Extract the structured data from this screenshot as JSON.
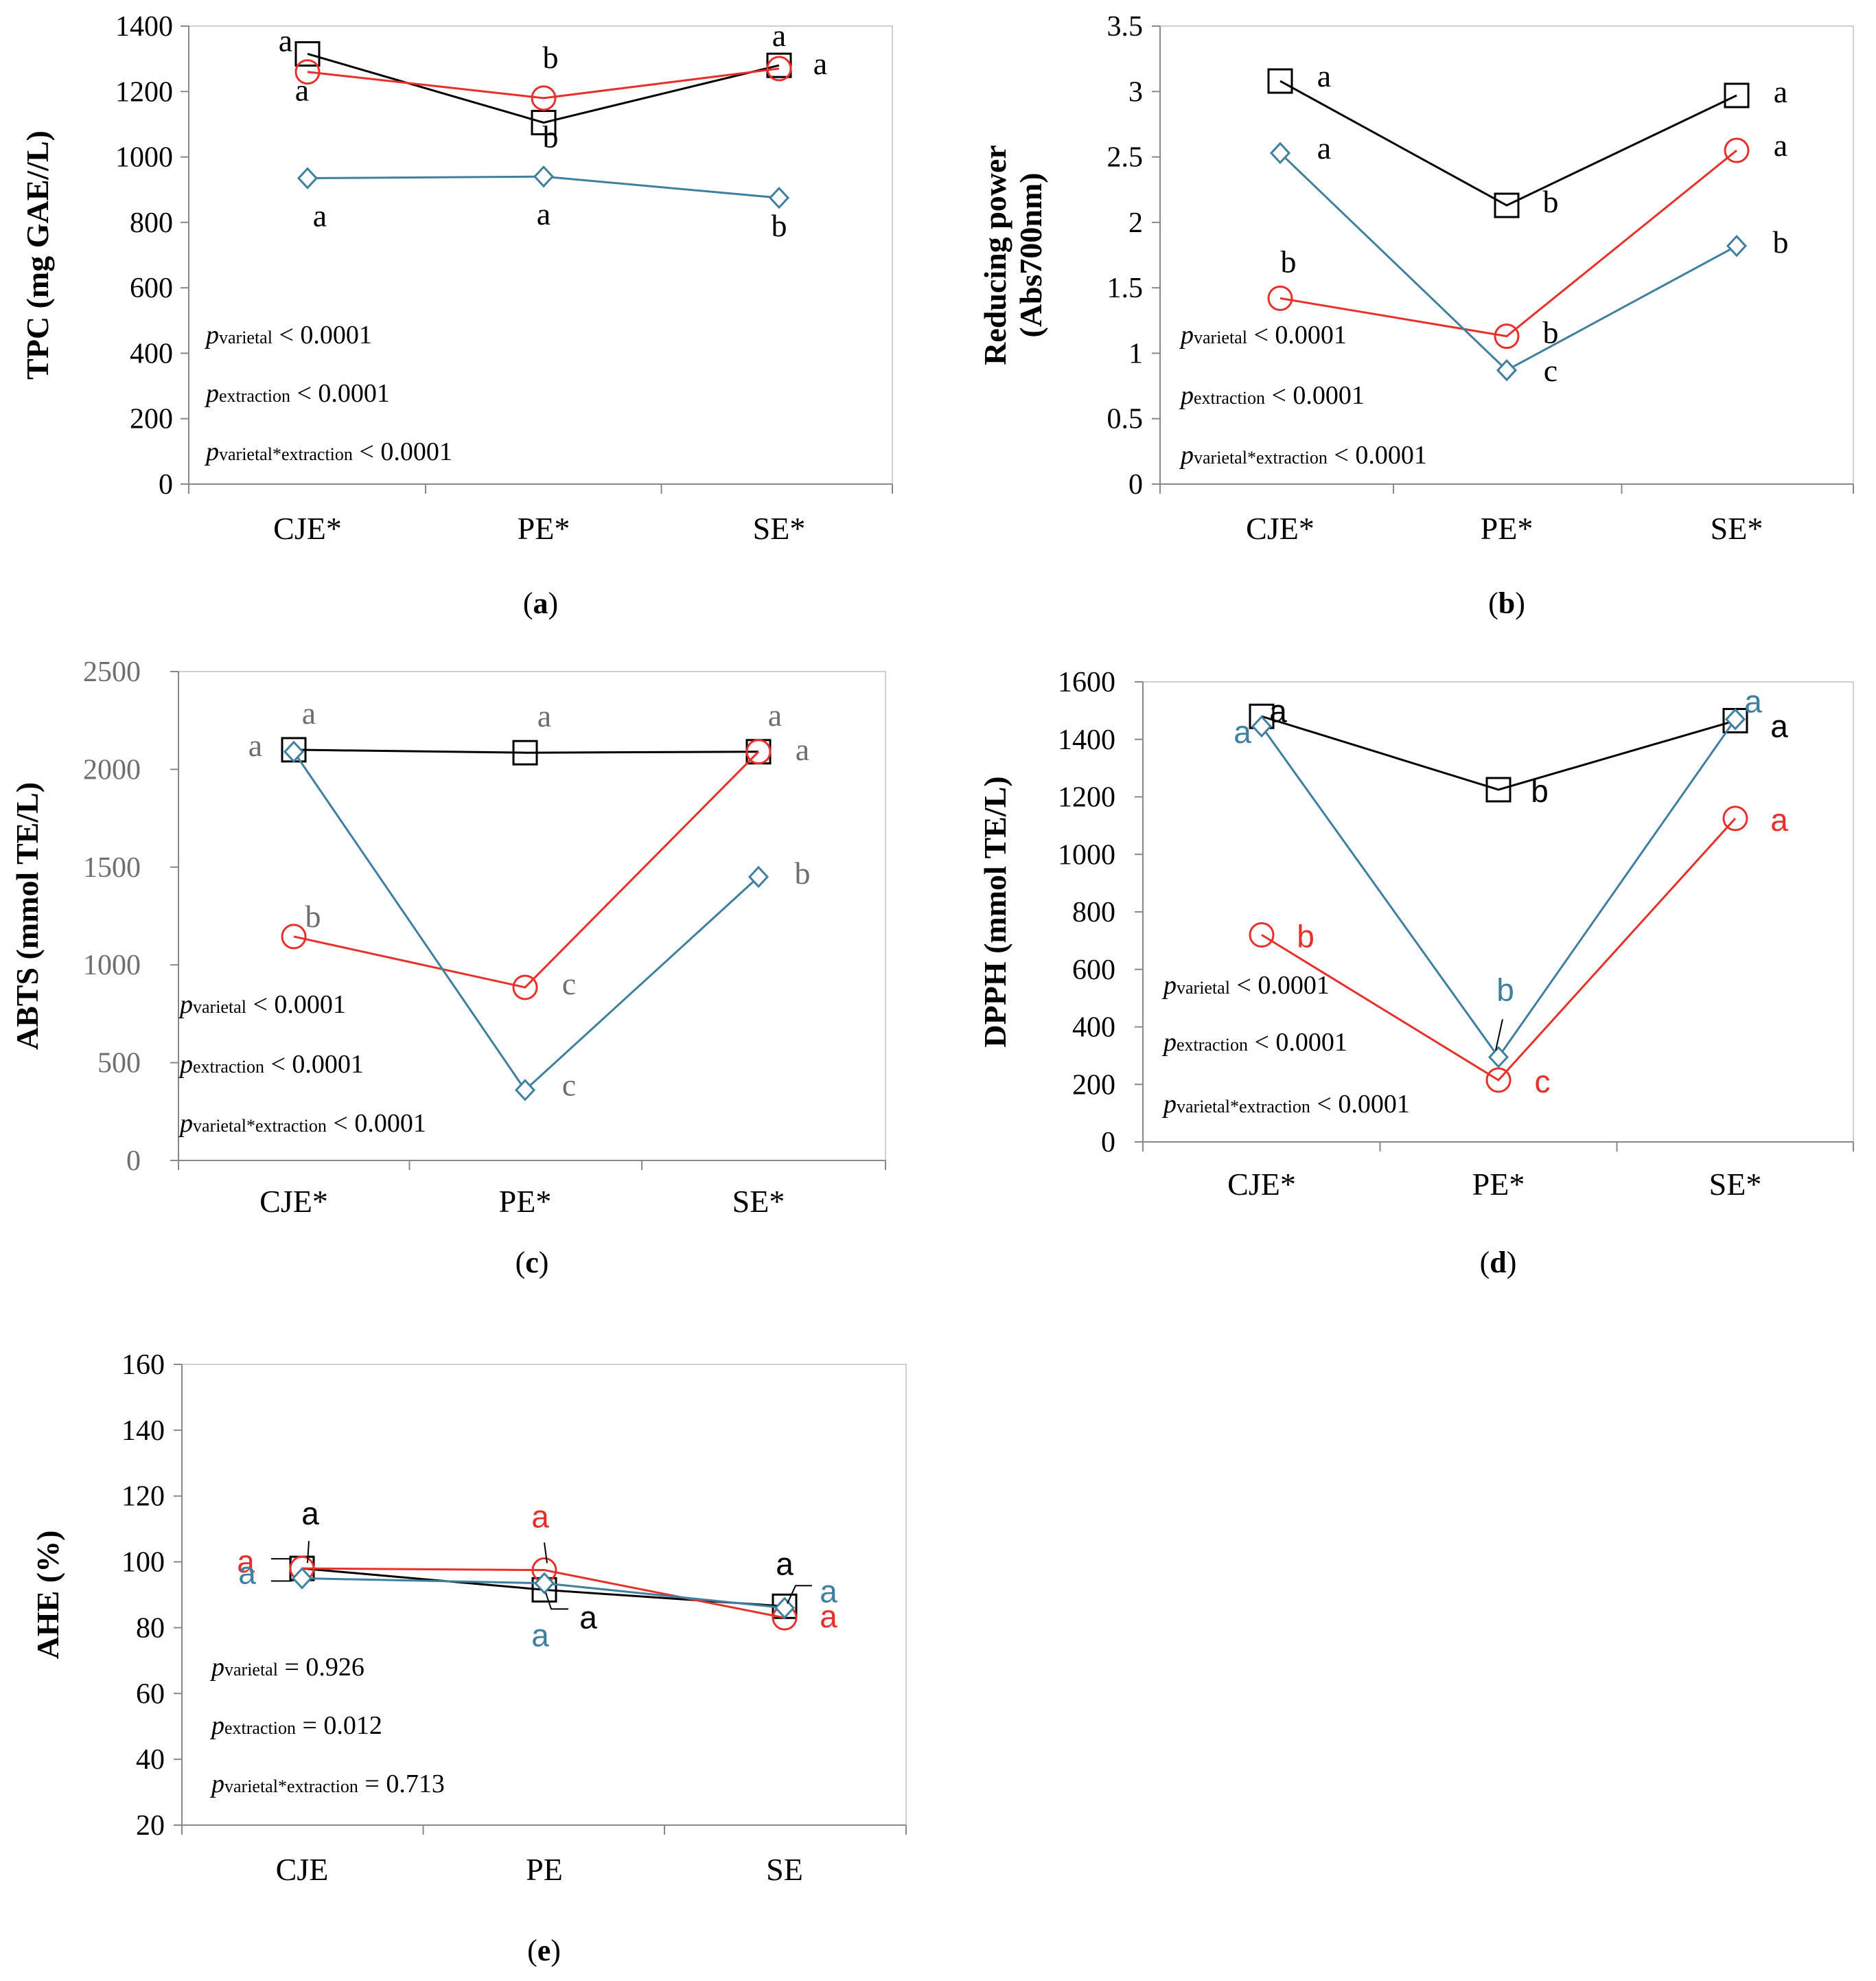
{
  "colors": {
    "black": "#000000",
    "red": "#e8302a",
    "blue": "#3f7f9f"
  },
  "series_legend": [
    {
      "key": "black",
      "marker": "square"
    },
    {
      "key": "red",
      "marker": "circle"
    },
    {
      "key": "blue",
      "marker": "diamond"
    }
  ],
  "chart_data": [
    {
      "panel": "(a)",
      "panel_letter": "a",
      "type": "line",
      "ylabel": "TPC (mg GAE//L)",
      "ylabel2": "",
      "categories": [
        "CJE*",
        "PE*",
        "SE*"
      ],
      "ylim": [
        0,
        1400
      ],
      "yticks": [
        0,
        200,
        400,
        600,
        800,
        1000,
        1200,
        1400
      ],
      "ytick_labels": [
        "0",
        "200",
        "400",
        "600",
        "800",
        "1000",
        "1200",
        "1400"
      ],
      "series": [
        {
          "name": "black-square",
          "color": "black",
          "marker": "square",
          "values": [
            1315,
            1105,
            1280
          ]
        },
        {
          "name": "red-circle",
          "color": "red",
          "marker": "circle",
          "values": [
            1260,
            1180,
            1270
          ]
        },
        {
          "name": "blue-diamond",
          "color": "blue",
          "marker": "diamond",
          "values": [
            935,
            940,
            875
          ]
        }
      ],
      "letters": [
        {
          "text": "a",
          "color": "black",
          "series": 0,
          "cat": 0,
          "dx": -32,
          "dy": -4
        },
        {
          "text": "b",
          "color": "black",
          "series": 0,
          "cat": 1,
          "dx": 10,
          "dy": 36
        },
        {
          "text": "a",
          "color": "black",
          "series": 0,
          "cat": 2,
          "dx": 0,
          "dy": -28
        },
        {
          "text": "a",
          "color": "black",
          "series": 1,
          "cat": 0,
          "dx": -8,
          "dy": 42
        },
        {
          "text": "b",
          "color": "black",
          "series": 1,
          "cat": 1,
          "dx": 10,
          "dy": -44
        },
        {
          "text": "a",
          "color": "black",
          "series": 1,
          "cat": 2,
          "dx": 60,
          "dy": 8
        },
        {
          "text": "a",
          "color": "black",
          "series": 2,
          "cat": 0,
          "dx": 18,
          "dy": 70
        },
        {
          "text": "a",
          "color": "black",
          "series": 2,
          "cat": 1,
          "dx": 0,
          "dy": 70
        },
        {
          "text": "b",
          "color": "black",
          "series": 2,
          "cat": 2,
          "dx": 0,
          "dy": 56
        }
      ],
      "pvalues": [
        {
          "sub": "varietal",
          "rest": " < 0.0001"
        },
        {
          "sub": "extraction",
          "rest": " < 0.0001"
        },
        {
          "sub": "varietal*extraction",
          "rest": " < 0.0001"
        }
      ]
    },
    {
      "panel": "(b)",
      "panel_letter": "b",
      "type": "line",
      "ylabel": "Reducing power",
      "ylabel2": "(Abs700nm)",
      "categories": [
        "CJE*",
        "PE*",
        "SE*"
      ],
      "ylim": [
        0,
        3.5
      ],
      "yticks": [
        0,
        0.5,
        1,
        1.5,
        2,
        2.5,
        3,
        3.5
      ],
      "ytick_labels": [
        "0",
        "0.5",
        "1",
        "1.5",
        "2",
        "2.5",
        "3",
        "3.5"
      ],
      "series": [
        {
          "name": "black-square",
          "color": "black",
          "marker": "square",
          "values": [
            3.08,
            2.13,
            2.97
          ]
        },
        {
          "name": "red-circle",
          "color": "red",
          "marker": "circle",
          "values": [
            1.42,
            1.13,
            2.55
          ]
        },
        {
          "name": "blue-diamond",
          "color": "blue",
          "marker": "diamond",
          "values": [
            2.53,
            0.87,
            1.82
          ]
        }
      ],
      "letters": [
        {
          "text": "a",
          "color": "black",
          "series": 0,
          "cat": 0,
          "dx": 64,
          "dy": 8
        },
        {
          "text": "b",
          "color": "black",
          "series": 0,
          "cat": 1,
          "dx": 64,
          "dy": 10
        },
        {
          "text": "a",
          "color": "black",
          "series": 0,
          "cat": 2,
          "dx": 64,
          "dy": 10
        },
        {
          "text": "b",
          "color": "black",
          "series": 1,
          "cat": 0,
          "dx": 12,
          "dy": -38
        },
        {
          "text": "b",
          "color": "black",
          "series": 1,
          "cat": 1,
          "dx": 64,
          "dy": 10
        },
        {
          "text": "a",
          "color": "black",
          "series": 1,
          "cat": 2,
          "dx": 64,
          "dy": 8
        },
        {
          "text": "a",
          "color": "black",
          "series": 2,
          "cat": 0,
          "dx": 64,
          "dy": 8
        },
        {
          "text": "c",
          "color": "black",
          "series": 2,
          "cat": 1,
          "dx": 64,
          "dy": 16
        },
        {
          "text": "b",
          "color": "black",
          "series": 2,
          "cat": 2,
          "dx": 64,
          "dy": 10
        }
      ],
      "pvalues": [
        {
          "sub": "varietal",
          "rest": " < 0.0001"
        },
        {
          "sub": "extraction",
          "rest": " < 0.0001"
        },
        {
          "sub": "varietal*extraction",
          "rest": " < 0.0001"
        }
      ]
    },
    {
      "panel": "(c)",
      "panel_letter": "c",
      "type": "line",
      "ylabel": "ABTS (mmol TE/L)",
      "ylabel2": "",
      "tick_color": "gray",
      "categories": [
        "CJE*",
        "PE*",
        "SE*"
      ],
      "ylim": [
        0,
        2500
      ],
      "yticks": [
        0,
        500,
        1000,
        1500,
        2000,
        2500
      ],
      "ytick_labels": [
        "0",
        "500",
        "1000",
        "1500",
        "2000",
        "2500"
      ],
      "series": [
        {
          "name": "black-square",
          "color": "black",
          "marker": "square",
          "values": [
            2100,
            2085,
            2090
          ]
        },
        {
          "name": "red-circle",
          "color": "red",
          "marker": "circle",
          "values": [
            1145,
            885,
            2090
          ]
        },
        {
          "name": "blue-diamond",
          "color": "blue",
          "marker": "diamond",
          "values": [
            2090,
            360,
            1450
          ]
        }
      ],
      "letters": [
        {
          "text": "a",
          "color": "gray",
          "series": 0,
          "cat": 0,
          "dx": 22,
          "dy": -38
        },
        {
          "text": "a",
          "color": "gray",
          "series": 0,
          "cat": 1,
          "dx": 28,
          "dy": -38
        },
        {
          "text": "a",
          "color": "gray",
          "series": 0,
          "cat": 2,
          "dx": 24,
          "dy": -38
        },
        {
          "text": "b",
          "color": "gray",
          "series": 1,
          "cat": 0,
          "dx": 28,
          "dy": -14
        },
        {
          "text": "c",
          "color": "gray",
          "series": 1,
          "cat": 1,
          "dx": 64,
          "dy": 10
        },
        {
          "text": "a",
          "color": "gray",
          "series": 1,
          "cat": 2,
          "dx": 64,
          "dy": 12
        },
        {
          "text": "a",
          "color": "gray",
          "series": 2,
          "cat": 0,
          "dx": -56,
          "dy": 6
        },
        {
          "text": "c",
          "color": "gray",
          "series": 2,
          "cat": 1,
          "dx": 64,
          "dy": 8
        },
        {
          "text": "b",
          "color": "gray",
          "series": 2,
          "cat": 2,
          "dx": 64,
          "dy": 10
        }
      ],
      "pvalues": [
        {
          "sub": "varietal",
          "rest": " < 0.0001"
        },
        {
          "sub": "extraction",
          "rest": " < 0.0001"
        },
        {
          "sub": "varietal*extraction",
          "rest": " < 0.0001"
        }
      ]
    },
    {
      "panel": "(d)",
      "panel_letter": "d",
      "type": "line",
      "ylabel": "DPPH (mmol TE/L)",
      "ylabel2": "",
      "categories": [
        "CJE*",
        "PE*",
        "SE*"
      ],
      "ylim": [
        0,
        1600
      ],
      "yticks": [
        0,
        200,
        400,
        600,
        800,
        1000,
        1200,
        1400,
        1600
      ],
      "ytick_labels": [
        "0",
        "200",
        "400",
        "600",
        "800",
        "1000",
        "1200",
        "1400",
        "1600"
      ],
      "series": [
        {
          "name": "black-square",
          "color": "black",
          "marker": "square",
          "values": [
            1480,
            1225,
            1465
          ]
        },
        {
          "name": "red-circle",
          "color": "red",
          "marker": "circle",
          "values": [
            720,
            215,
            1125
          ]
        },
        {
          "name": "blue-diamond",
          "color": "blue",
          "marker": "diamond",
          "values": [
            1445,
            295,
            1470
          ]
        }
      ],
      "letters": [
        {
          "text": "a",
          "color": "black",
          "series": 0,
          "cat": 0,
          "dx": 24,
          "dy": 8,
          "sans": true
        },
        {
          "text": "b",
          "color": "black",
          "series": 0,
          "cat": 1,
          "dx": 60,
          "dy": 18,
          "sans": true
        },
        {
          "text": "a",
          "color": "black",
          "series": 0,
          "cat": 2,
          "dx": 64,
          "dy": 24,
          "sans": true
        },
        {
          "text": "b",
          "color": "red",
          "series": 1,
          "cat": 0,
          "dx": 64,
          "dy": 18,
          "sans": true
        },
        {
          "text": "c",
          "color": "red",
          "series": 1,
          "cat": 1,
          "dx": 64,
          "dy": 18,
          "sans": true
        },
        {
          "text": "a",
          "color": "red",
          "series": 1,
          "cat": 2,
          "dx": 64,
          "dy": 18,
          "sans": true
        },
        {
          "text": "a",
          "color": "blue",
          "series": 2,
          "cat": 0,
          "dx": -28,
          "dy": 24,
          "sans": true
        },
        {
          "text": "b",
          "color": "blue",
          "series": 2,
          "cat": 1,
          "dx": 10,
          "dy": -82,
          "sans": true
        },
        {
          "text": "a",
          "color": "blue",
          "series": 2,
          "cat": 2,
          "dx": 26,
          "dy": -10,
          "sans": true
        }
      ],
      "pvalues": [
        {
          "sub": "varietal",
          "rest": " < 0.0001"
        },
        {
          "sub": "extraction",
          "rest": " < 0.0001"
        },
        {
          "sub": "varietal*extraction",
          "rest": " < 0.0001"
        }
      ]
    },
    {
      "panel": "(e)",
      "panel_letter": "e",
      "type": "line",
      "ylabel": "AHE (%)",
      "ylabel2": "",
      "categories": [
        "CJE",
        "PE",
        "SE"
      ],
      "ylim": [
        20,
        160
      ],
      "yticks": [
        20,
        40,
        60,
        80,
        100,
        120,
        140,
        160
      ],
      "ytick_labels": [
        "20",
        "40",
        "60",
        "80",
        "100",
        "120",
        "140",
        "160"
      ],
      "series": [
        {
          "name": "black-square",
          "color": "black",
          "marker": "square",
          "values": [
            98,
            91.5,
            86.5
          ]
        },
        {
          "name": "red-circle",
          "color": "red",
          "marker": "circle",
          "values": [
            98,
            97.5,
            83
          ]
        },
        {
          "name": "blue-diamond",
          "color": "blue",
          "marker": "diamond",
          "values": [
            95,
            93.5,
            86
          ]
        }
      ],
      "letters": [
        {
          "text": "a",
          "color": "black",
          "series": 0,
          "cat": 0,
          "dx": 12,
          "dy": -64,
          "sans": true
        },
        {
          "text": "a",
          "color": "black",
          "series": 0,
          "cat": 1,
          "dx": 64,
          "dy": 56,
          "sans": true
        },
        {
          "text": "a",
          "color": "black",
          "series": 0,
          "cat": 2,
          "dx": 0,
          "dy": -46,
          "sans": true
        },
        {
          "text": "a",
          "color": "red",
          "series": 1,
          "cat": 0,
          "dx": -82,
          "dy": 6,
          "sans": true
        },
        {
          "text": "a",
          "color": "red",
          "series": 1,
          "cat": 1,
          "dx": -6,
          "dy": -62,
          "sans": true
        },
        {
          "text": "a",
          "color": "red",
          "series": 1,
          "cat": 2,
          "dx": 64,
          "dy": 14,
          "sans": true
        },
        {
          "text": "a",
          "color": "blue",
          "series": 2,
          "cat": 0,
          "dx": -80,
          "dy": 8,
          "sans": true
        },
        {
          "text": "a",
          "color": "blue",
          "series": 2,
          "cat": 1,
          "dx": -6,
          "dy": 92,
          "sans": true
        },
        {
          "text": "a",
          "color": "blue",
          "series": 2,
          "cat": 2,
          "dx": 64,
          "dy": -8,
          "sans": true
        }
      ],
      "pvalues": [
        {
          "sub": "varietal",
          "rest": " = 0.926"
        },
        {
          "sub": "extraction",
          "rest": " = 0.012"
        },
        {
          "sub": "varietal*extraction",
          "rest": " = 0.713"
        }
      ]
    }
  ]
}
